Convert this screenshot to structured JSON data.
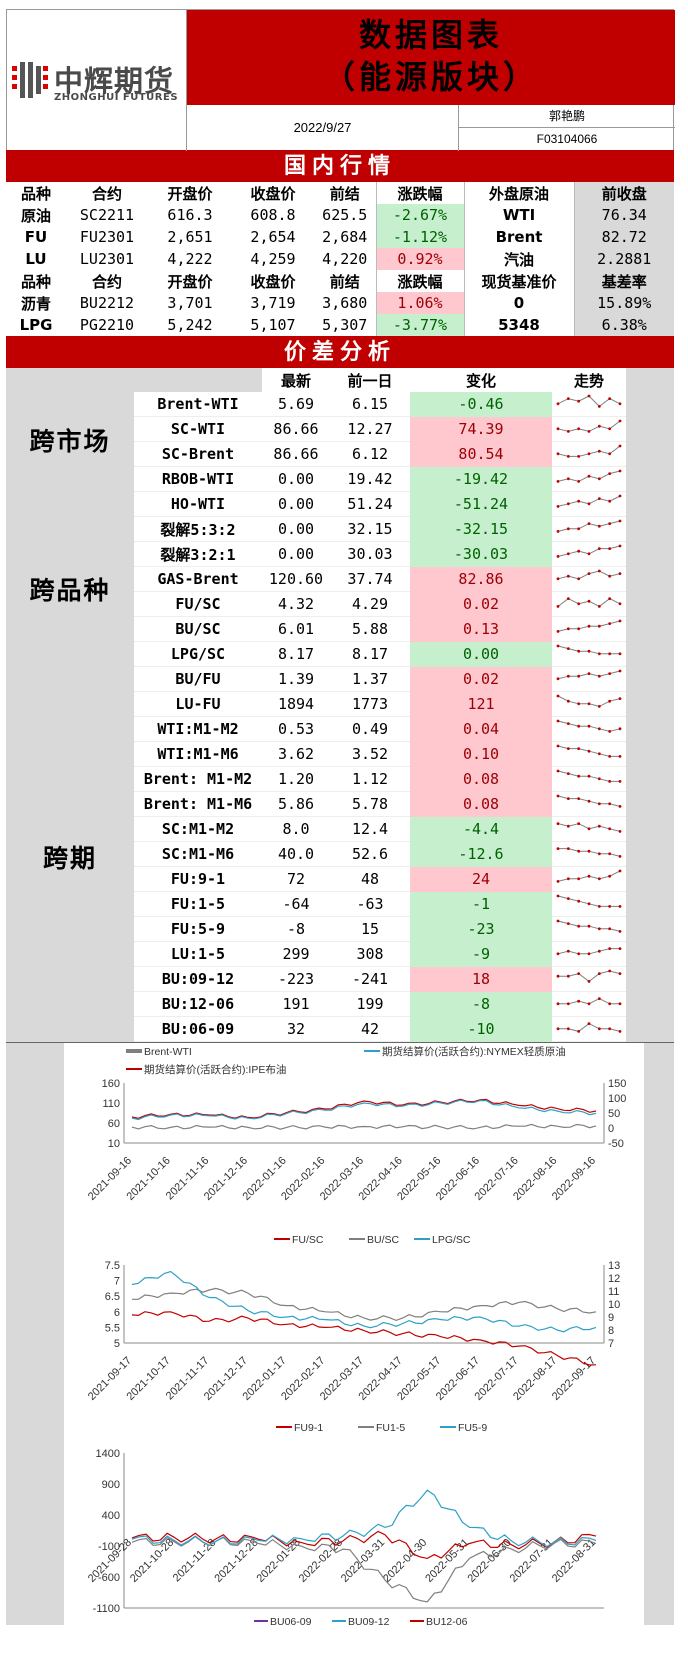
{
  "header": {
    "logo_cn": "中辉期货",
    "logo_en": "ZHONGHUI FUTURES",
    "title_line1": "数据图表",
    "title_line2": "（能源版块）",
    "date": "2022/9/27",
    "author": "郭艳鹏",
    "author_id": "F03104066"
  },
  "domestic": {
    "title": "国内行情",
    "head1": [
      "品种",
      "合约",
      "开盘价",
      "收盘价",
      "前结",
      "涨跌幅",
      "外盘原油",
      "前收盘"
    ],
    "rows1": [
      {
        "name": "原油",
        "contract": "SC2211",
        "open": "616.3",
        "close": "608.8",
        "prev": "625.5",
        "chg": "-2.67%",
        "dir": "down",
        "ext_name": "WTI",
        "ext_close": "76.34"
      },
      {
        "name": "FU",
        "contract": "FU2301",
        "open": "2,651",
        "close": "2,654",
        "prev": "2,684",
        "chg": "-1.12%",
        "dir": "down",
        "ext_name": "Brent",
        "ext_close": "82.72"
      },
      {
        "name": "LU",
        "contract": "LU2301",
        "open": "4,222",
        "close": "4,259",
        "prev": "4,220",
        "chg": "0.92%",
        "dir": "up",
        "ext_name": "汽油",
        "ext_close": "2.2881"
      }
    ],
    "head2": [
      "品种",
      "合约",
      "开盘价",
      "收盘价",
      "前结",
      "涨跌幅",
      "现货基准价",
      "基差率"
    ],
    "rows2": [
      {
        "name": "沥青",
        "contract": "BU2212",
        "open": "3,701",
        "close": "3,719",
        "prev": "3,680",
        "chg": "1.06%",
        "dir": "up",
        "ext_name": "0",
        "ext_close": "15.89%"
      },
      {
        "name": "LPG",
        "contract": "PG2210",
        "open": "5,242",
        "close": "5,107",
        "prev": "5,307",
        "chg": "-3.77%",
        "dir": "down",
        "ext_name": "5348",
        "ext_close": "6.38%"
      }
    ]
  },
  "spread": {
    "title": "价差分析",
    "columns": [
      "最新",
      "前一日",
      "变化",
      "走势"
    ],
    "groups": [
      "跨市场",
      "跨品种",
      "跨期"
    ],
    "rows": [
      {
        "name": "Brent-WTI",
        "latest": "5.69",
        "prev": "6.15",
        "chg": "-0.46",
        "dir": "down",
        "trend": [
          3,
          5,
          4,
          6,
          2,
          5,
          3
        ]
      },
      {
        "name": "SC-WTI",
        "latest": "86.66",
        "prev": "12.27",
        "chg": "74.39",
        "dir": "up",
        "trend": [
          3,
          2,
          3,
          2,
          4,
          3,
          6
        ]
      },
      {
        "name": "SC-Brent",
        "latest": "86.66",
        "prev": "6.12",
        "chg": "80.54",
        "dir": "up",
        "trend": [
          3,
          2,
          2,
          3,
          4,
          3,
          6
        ]
      },
      {
        "name": "RBOB-WTI",
        "latest": "0.00",
        "prev": "19.42",
        "chg": "-19.42",
        "dir": "down",
        "trend": [
          2,
          3,
          2,
          4,
          3,
          5,
          6
        ]
      },
      {
        "name": "HO-WTI",
        "latest": "0.00",
        "prev": "51.24",
        "chg": "-51.24",
        "dir": "down",
        "trend": [
          2,
          3,
          4,
          3,
          5,
          4,
          6
        ]
      },
      {
        "name": "裂解5:3:2",
        "latest": "0.00",
        "prev": "32.15",
        "chg": "-32.15",
        "dir": "down",
        "trend": [
          2,
          3,
          3,
          5,
          4,
          5,
          6
        ]
      },
      {
        "name": "裂解3:2:1",
        "latest": "0.00",
        "prev": "30.03",
        "chg": "-30.03",
        "dir": "down",
        "trend": [
          2,
          3,
          4,
          3,
          5,
          5,
          6
        ]
      },
      {
        "name": "GAS-Brent",
        "latest": "120.60",
        "prev": "37.74",
        "chg": "82.86",
        "dir": "up",
        "trend": [
          3,
          4,
          3,
          5,
          6,
          4,
          5
        ]
      },
      {
        "name": "FU/SC",
        "latest": "4.32",
        "prev": "4.29",
        "chg": "0.02",
        "dir": "up",
        "trend": [
          2,
          5,
          3,
          4,
          2,
          5,
          3
        ]
      },
      {
        "name": "BU/SC",
        "latest": "6.01",
        "prev": "5.88",
        "chg": "0.13",
        "dir": "up",
        "trend": [
          2,
          3,
          3,
          4,
          4,
          5,
          6
        ]
      },
      {
        "name": "LPG/SC",
        "latest": "8.17",
        "prev": "8.17",
        "chg": "0.00",
        "dir": "down",
        "trend": [
          6,
          5,
          4,
          4,
          3,
          3,
          3
        ]
      },
      {
        "name": "BU/FU",
        "latest": "1.39",
        "prev": "1.37",
        "chg": "0.02",
        "dir": "up",
        "trend": [
          3,
          4,
          4,
          5,
          4,
          5,
          6
        ]
      },
      {
        "name": "LU-FU",
        "latest": "1894",
        "prev": "1773",
        "chg": "121",
        "dir": "up",
        "trend": [
          6,
          4,
          3,
          3,
          2,
          4,
          5
        ]
      },
      {
        "name": "WTI:M1-M2",
        "latest": "0.53",
        "prev": "0.49",
        "chg": "0.04",
        "dir": "up",
        "trend": [
          6,
          5,
          4,
          4,
          3,
          2,
          3
        ]
      },
      {
        "name": "WTI:M1-M6",
        "latest": "3.62",
        "prev": "3.52",
        "chg": "0.10",
        "dir": "up",
        "trend": [
          6,
          5,
          5,
          4,
          3,
          2,
          2
        ]
      },
      {
        "name": "Brent: M1-M2",
        "latest": "1.20",
        "prev": "1.12",
        "chg": "0.08",
        "dir": "up",
        "trend": [
          6,
          5,
          4,
          4,
          3,
          2,
          2
        ]
      },
      {
        "name": "Brent: M1-M6",
        "latest": "5.86",
        "prev": "5.78",
        "chg": "0.08",
        "dir": "up",
        "trend": [
          6,
          5,
          5,
          4,
          3,
          3,
          2
        ]
      },
      {
        "name": "SC:M1-M2",
        "latest": "8.0",
        "prev": "12.4",
        "chg": "-4.4",
        "dir": "down",
        "trend": [
          5,
          4,
          5,
          3,
          4,
          3,
          2
        ]
      },
      {
        "name": "SC:M1-M6",
        "latest": "40.0",
        "prev": "52.6",
        "chg": "-12.6",
        "dir": "down",
        "trend": [
          5,
          5,
          4,
          4,
          3,
          3,
          2
        ]
      },
      {
        "name": "FU:9-1",
        "latest": "72",
        "prev": "48",
        "chg": "24",
        "dir": "up",
        "trend": [
          2,
          3,
          3,
          4,
          3,
          4,
          6
        ]
      },
      {
        "name": "FU:1-5",
        "latest": "-64",
        "prev": "-63",
        "chg": "-1",
        "dir": "down",
        "trend": [
          6,
          5,
          4,
          3,
          2,
          2,
          2
        ]
      },
      {
        "name": "FU:5-9",
        "latest": "-8",
        "prev": "15",
        "chg": "-23",
        "dir": "down",
        "trend": [
          6,
          5,
          4,
          4,
          3,
          3,
          2
        ]
      },
      {
        "name": "LU:1-5",
        "latest": "299",
        "prev": "308",
        "chg": "-9",
        "dir": "down",
        "trend": [
          3,
          4,
          3,
          3,
          4,
          5,
          5
        ]
      },
      {
        "name": "BU:09-12",
        "latest": "-223",
        "prev": "-241",
        "chg": "18",
        "dir": "up",
        "trend": [
          4,
          4,
          5,
          2,
          5,
          6,
          5
        ]
      },
      {
        "name": "BU:12-06",
        "latest": "191",
        "prev": "199",
        "chg": "-8",
        "dir": "down",
        "trend": [
          3,
          3,
          4,
          3,
          5,
          3,
          3
        ]
      },
      {
        "name": "BU:06-09",
        "latest": "32",
        "prev": "42",
        "chg": "-10",
        "dir": "down",
        "trend": [
          3,
          3,
          2,
          5,
          3,
          3,
          2
        ]
      }
    ]
  },
  "chart_data": [
    {
      "type": "line",
      "legend": [
        "Brent-WTI",
        "期货结算价(活跃合约):NYMEX轻质原油",
        "期货结算价(活跃合约):IPE布油"
      ],
      "x": [
        "2021-09-16",
        "2021-10-16",
        "2021-11-16",
        "2021-12-16",
        "2022-01-16",
        "2022-02-16",
        "2022-03-16",
        "2022-04-16",
        "2022-05-16",
        "2022-06-16",
        "2022-07-16",
        "2022-08-16",
        "2022-09-16"
      ],
      "series": [
        {
          "name": "期货结算价(活跃合约):IPE布油",
          "color": "#c00000",
          "axis": "left",
          "values": [
            75,
            82,
            80,
            74,
            86,
            95,
            115,
            105,
            112,
            118,
            104,
            96,
            90
          ]
        },
        {
          "name": "期货结算价(活跃合约):NYMEX轻质原油",
          "color": "#2ea0c8",
          "axis": "left",
          "values": [
            72,
            80,
            78,
            72,
            84,
            92,
            110,
            102,
            110,
            116,
            98,
            90,
            84
          ]
        },
        {
          "name": "Brent-WTI",
          "color": "#7f7f7f",
          "axis": "right",
          "values": [
            3,
            2,
            3,
            2,
            2,
            3,
            5,
            4,
            3,
            2,
            6,
            6,
            7
          ]
        }
      ],
      "yleft": {
        "ticks": [
          "160",
          "110",
          "60",
          "10"
        ]
      },
      "yright": {
        "ticks": [
          "150",
          "100",
          "50",
          "0",
          "-50"
        ]
      }
    },
    {
      "type": "line",
      "legend": [
        "FU/SC",
        "BU/SC",
        "LPG/SC"
      ],
      "x": [
        "2021-09-17",
        "2021-10-17",
        "2021-11-17",
        "2021-12-17",
        "2022-01-17",
        "2022-02-17",
        "2022-03-17",
        "2022-04-17",
        "2022-05-17",
        "2022-06-17",
        "2022-07-17",
        "2022-08-17",
        "2022-09-17"
      ],
      "series": [
        {
          "name": "FU/SC",
          "color": "#c00000",
          "axis": "left",
          "values": [
            5.9,
            6.0,
            5.7,
            5.8,
            5.6,
            5.5,
            5.4,
            5.3,
            5.2,
            5.1,
            4.9,
            4.6,
            4.3
          ]
        },
        {
          "name": "BU/SC",
          "color": "#7f7f7f",
          "axis": "left",
          "values": [
            6.4,
            6.6,
            6.7,
            6.6,
            6.2,
            6.0,
            5.8,
            5.8,
            6.0,
            6.2,
            6.3,
            6.1,
            6.0
          ]
        },
        {
          "name": "LPG/SC",
          "color": "#2ea0c8",
          "axis": "right",
          "values": [
            11.5,
            12.5,
            10.5,
            9.5,
            9.0,
            8.8,
            8.3,
            8.5,
            8.8,
            9.0,
            8.3,
            8.0,
            8.2
          ]
        }
      ],
      "yleft": {
        "ticks": [
          "7.5",
          "7",
          "6.5",
          "6",
          "5.5",
          "5"
        ]
      },
      "yright": {
        "ticks": [
          "13",
          "12",
          "11",
          "10",
          "9",
          "8",
          "7"
        ]
      }
    },
    {
      "type": "line",
      "legend": [
        "FU9-1",
        "FU1-5",
        "FU5-9"
      ],
      "x": [
        "2021-09-28",
        "2021-10-28",
        "2021-11-28",
        "2021-12-28",
        "2022-01-28",
        "2022-02-28",
        "2022-03-31",
        "2022-04-30",
        "2022-05-31",
        "2022-06-30",
        "2022-07-31",
        "2022-08-31"
      ],
      "series": [
        {
          "name": "FU9-1",
          "color": "#c00000",
          "values": [
            30,
            40,
            20,
            10,
            -40,
            -20,
            80,
            -300,
            -60,
            -80,
            -40,
            60
          ]
        },
        {
          "name": "FU1-5",
          "color": "#7f7f7f",
          "values": [
            -40,
            -30,
            -20,
            -60,
            -100,
            -150,
            -650,
            -1000,
            -300,
            -150,
            -60,
            -60
          ]
        },
        {
          "name": "FU5-9",
          "color": "#2ea0c8",
          "values": [
            10,
            -10,
            -20,
            -10,
            20,
            60,
            200,
            800,
            200,
            -20,
            -40,
            -10
          ]
        }
      ],
      "yleft": {
        "ticks": [
          "1400",
          "900",
          "400",
          "-100",
          "-600",
          "-1100"
        ]
      }
    }
  ],
  "bottom_legend": [
    "BU06-09",
    "BU09-12",
    "BU12-06"
  ]
}
